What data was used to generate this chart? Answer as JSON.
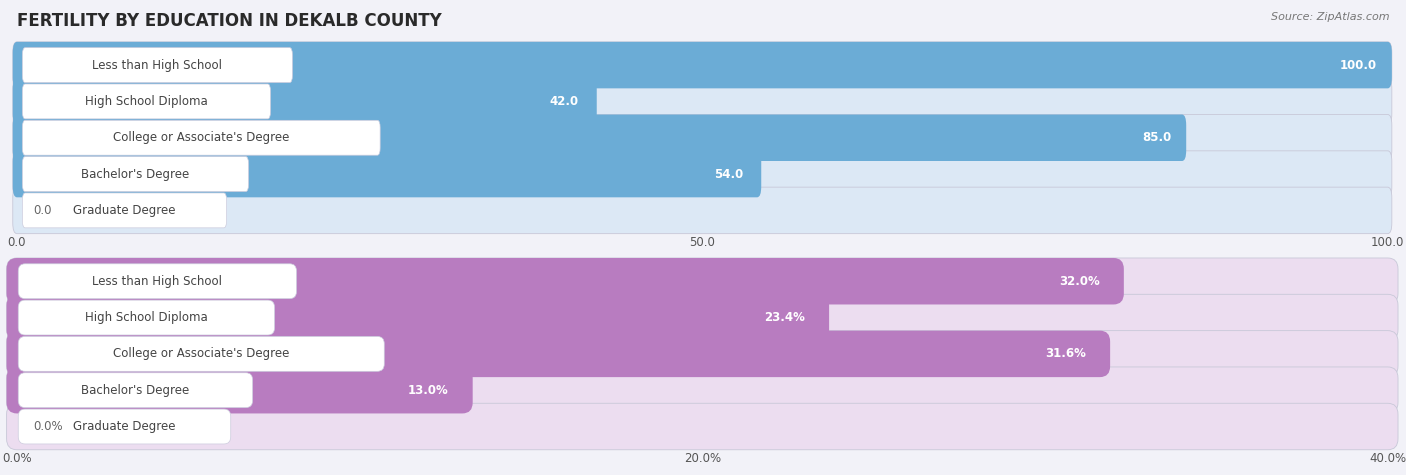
{
  "title": "FERTILITY BY EDUCATION IN DEKALB COUNTY",
  "source": "Source: ZipAtlas.com",
  "top_chart": {
    "categories": [
      "Less than High School",
      "High School Diploma",
      "College or Associate's Degree",
      "Bachelor's Degree",
      "Graduate Degree"
    ],
    "values": [
      100.0,
      42.0,
      85.0,
      54.0,
      0.0
    ],
    "value_labels": [
      "100.0",
      "42.0",
      "85.0",
      "54.0",
      "0.0"
    ],
    "bar_color": "#6bacd6",
    "bar_bg_color": "#dce8f5",
    "xlim": [
      0,
      100
    ],
    "xticks": [
      0.0,
      50.0,
      100.0
    ],
    "xticklabels": [
      "0.0",
      "50.0",
      "100.0"
    ]
  },
  "bottom_chart": {
    "categories": [
      "Less than High School",
      "High School Diploma",
      "College or Associate's Degree",
      "Bachelor's Degree",
      "Graduate Degree"
    ],
    "values": [
      32.0,
      23.4,
      31.6,
      13.0,
      0.0
    ],
    "value_labels": [
      "32.0%",
      "23.4%",
      "31.6%",
      "13.0%",
      "0.0%"
    ],
    "bar_color": "#b87cc0",
    "bar_bg_color": "#ecddf0",
    "xlim": [
      0,
      40
    ],
    "xticks": [
      0.0,
      20.0,
      40.0
    ],
    "xticklabels": [
      "0.0%",
      "20.0%",
      "40.0%"
    ]
  },
  "page_bg_color": "#f2f2f8",
  "title_color": "#2a2a2a",
  "label_text_color": "#444444",
  "value_color_inside": "#ffffff",
  "value_color_outside": "#666666",
  "title_fontsize": 12,
  "label_fontsize": 8.5,
  "value_fontsize": 8.5,
  "tick_fontsize": 8.5,
  "source_fontsize": 8
}
